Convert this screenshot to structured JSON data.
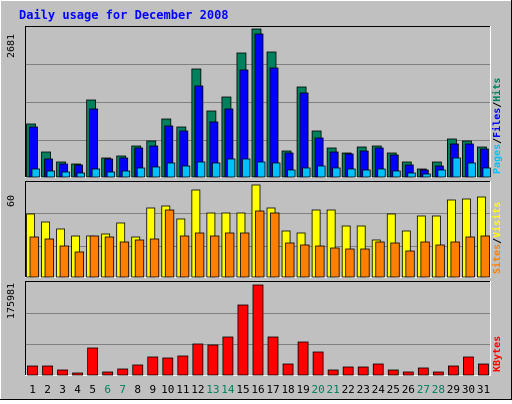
{
  "title": "Daily usage for December 2008",
  "colors": {
    "background": "#c0c0c0",
    "title": "#0000ff",
    "hits": "#00805c",
    "files": "#0000ff",
    "pages": "#00c0ff",
    "visits": "#ffff00",
    "sites": "#ff8000",
    "kbytes": "#ff0000",
    "weekend_label": "#00805c",
    "weekday_label": "#000000",
    "grid": "#808080"
  },
  "chart_data": [
    {
      "type": "bar",
      "panel": "hits-files-pages",
      "ylim": [
        0,
        2681
      ],
      "ytick_label": "2681",
      "legend": [
        "Pages",
        "/",
        "Files",
        "/",
        "Hits"
      ],
      "categories": [
        "1",
        "2",
        "3",
        "4",
        "5",
        "6",
        "7",
        "8",
        "9",
        "10",
        "11",
        "12",
        "13",
        "14",
        "15",
        "16",
        "17",
        "18",
        "19",
        "20",
        "21",
        "22",
        "23",
        "24",
        "25",
        "26",
        "27",
        "28",
        "29",
        "30",
        "31"
      ],
      "weekend_days": [
        "6",
        "7",
        "13",
        "14",
        "20",
        "21",
        "27",
        "28"
      ],
      "series": [
        {
          "name": "Hits",
          "values": [
            960,
            460,
            270,
            240,
            1390,
            350,
            380,
            570,
            660,
            1050,
            900,
            1950,
            1190,
            1450,
            2250,
            2681,
            2270,
            470,
            1630,
            840,
            530,
            440,
            540,
            560,
            440,
            270,
            150,
            280,
            680,
            660,
            550
          ]
        },
        {
          "name": "Files",
          "values": [
            900,
            330,
            230,
            210,
            1230,
            330,
            340,
            520,
            560,
            930,
            830,
            1640,
            990,
            1240,
            1940,
            2590,
            1980,
            430,
            1530,
            700,
            460,
            410,
            470,
            520,
            400,
            220,
            130,
            200,
            590,
            600,
            500
          ]
        },
        {
          "name": "Pages",
          "values": [
            150,
            110,
            90,
            80,
            140,
            90,
            100,
            160,
            180,
            250,
            200,
            280,
            260,
            330,
            330,
            270,
            260,
            120,
            160,
            200,
            160,
            140,
            130,
            140,
            100,
            80,
            60,
            130,
            340,
            260,
            170
          ]
        }
      ]
    },
    {
      "type": "bar",
      "panel": "visits-sites",
      "ylim": [
        0,
        60
      ],
      "ytick_label": "60",
      "legend": [
        "Sites",
        "/",
        "Visits"
      ],
      "categories": [
        "1",
        "2",
        "3",
        "4",
        "5",
        "6",
        "7",
        "8",
        "9",
        "10",
        "11",
        "12",
        "13",
        "14",
        "15",
        "16",
        "17",
        "18",
        "19",
        "20",
        "21",
        "22",
        "23",
        "24",
        "25",
        "26",
        "27",
        "28",
        "29",
        "30",
        "31"
      ],
      "series": [
        {
          "name": "Visits",
          "values": [
            41,
            36,
            31,
            27,
            27,
            28,
            35,
            26,
            45,
            46,
            38,
            57,
            42,
            42,
            42,
            60,
            45,
            30,
            29,
            44,
            44,
            33,
            33,
            24,
            41,
            30,
            40,
            40,
            50,
            51,
            52
          ]
        },
        {
          "name": "Sites",
          "values": [
            26,
            25,
            20,
            16,
            27,
            26,
            23,
            24,
            25,
            44,
            27,
            29,
            27,
            29,
            29,
            43,
            42,
            22,
            21,
            20,
            19,
            18,
            18,
            23,
            22,
            17,
            23,
            21,
            23,
            26,
            27
          ]
        }
      ]
    },
    {
      "type": "bar",
      "panel": "kbytes",
      "ylim": [
        0,
        175981
      ],
      "ytick_label": "175981",
      "legend": [
        "KBytes"
      ],
      "categories": [
        "1",
        "2",
        "3",
        "4",
        "5",
        "6",
        "7",
        "8",
        "9",
        "10",
        "11",
        "12",
        "13",
        "14",
        "15",
        "16",
        "17",
        "18",
        "19",
        "20",
        "21",
        "22",
        "23",
        "24",
        "25",
        "26",
        "27",
        "28",
        "29",
        "30",
        "31"
      ],
      "series": [
        {
          "name": "KBytes",
          "values": [
            17500,
            17500,
            10000,
            4000,
            52000,
            6000,
            11000,
            20000,
            36000,
            34000,
            37000,
            61000,
            58000,
            75000,
            136000,
            175981,
            75000,
            21000,
            64000,
            45000,
            10000,
            16000,
            16000,
            21000,
            10000,
            5000,
            13000,
            6000,
            18000,
            36000,
            22000
          ]
        }
      ]
    }
  ]
}
